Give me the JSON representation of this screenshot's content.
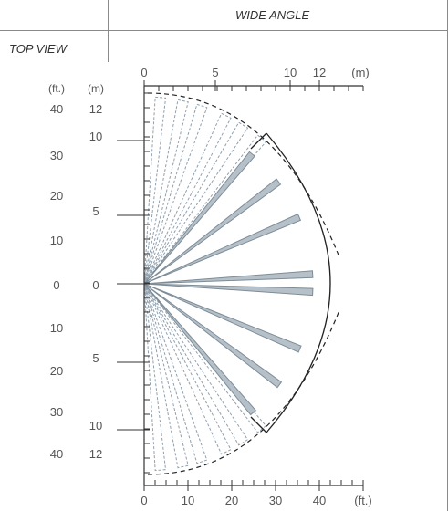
{
  "header": {
    "title": "WIDE ANGLE",
    "view_label": "TOP VIEW"
  },
  "units": {
    "feet_left": "(ft.)",
    "meters_left": "(m)",
    "meters_top": "(m)",
    "feet_bottom": "(ft.)"
  },
  "axis_top_m": [
    "0",
    "5",
    "10",
    "12"
  ],
  "axis_left_ft": [
    "40",
    "30",
    "20",
    "10",
    "0",
    "10",
    "20",
    "30",
    "40"
  ],
  "axis_left_m": [
    "12",
    "10",
    "5",
    "0",
    "5",
    "10",
    "12"
  ],
  "axis_bottom_ft": [
    "0",
    "10",
    "20",
    "30",
    "40"
  ],
  "colors": {
    "beam_fill": "#b5c0c8",
    "beam_stroke": "#7d8c97",
    "dashed_zone": "#8fa0ae",
    "boundary": "#222222"
  }
}
